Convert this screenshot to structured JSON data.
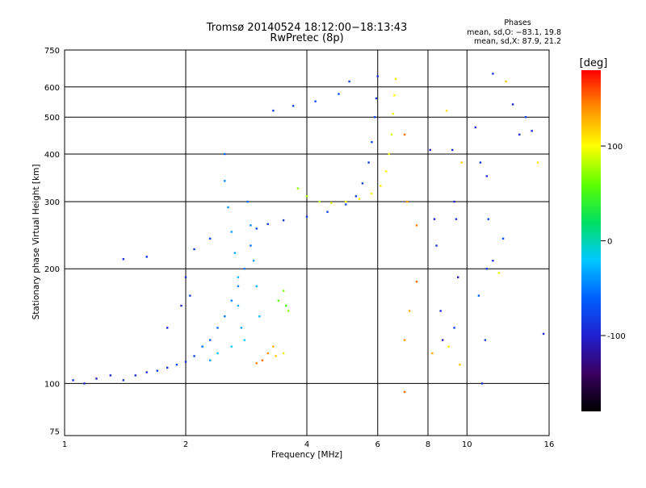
{
  "chart_data": {
    "type": "scatter",
    "title": "Tromsø 20140524 18:12:00−18:13:43",
    "subtitle": "RwPretec (8p)",
    "xlabel": "Frequency [MHz]",
    "ylabel": "Stationary phase Virtual Height [km]",
    "x_scale": "log",
    "y_scale": "log",
    "xlim": [
      1,
      16
    ],
    "ylim": [
      73,
      750
    ],
    "x_ticks": [
      1,
      2,
      4,
      6,
      8,
      10,
      16
    ],
    "y_ticks": [
      75,
      100,
      200,
      300,
      400,
      500,
      600,
      750
    ],
    "grid": true,
    "phases_note": {
      "heading": "Phases",
      "line1": "mean, sd,O: −83.1, 19.8",
      "line2": "mean, sd,X:  87.9, 21.2"
    },
    "colorbar": {
      "label": "[deg]",
      "range": [
        -180,
        180
      ],
      "ticks": [
        -100,
        0,
        100
      ],
      "colors": [
        "#000000",
        "#3a0060",
        "#2020d0",
        "#0060ff",
        "#00c8ff",
        "#00e060",
        "#60ff00",
        "#ffff00",
        "#ff9000",
        "#ff0000"
      ]
    },
    "series": [
      {
        "points": [
          [
            1.05,
            102,
            -90
          ],
          [
            1.12,
            100,
            -95
          ],
          [
            1.2,
            103,
            -100
          ],
          [
            1.3,
            105,
            -95
          ],
          [
            1.4,
            102,
            -90
          ],
          [
            1.5,
            105,
            -100
          ],
          [
            1.6,
            107,
            -95
          ],
          [
            1.7,
            108,
            -85
          ],
          [
            1.8,
            110,
            -90
          ],
          [
            1.9,
            112,
            -80
          ],
          [
            2.0,
            114,
            -85
          ],
          [
            2.1,
            118,
            -75
          ],
          [
            2.2,
            125,
            -70
          ],
          [
            2.3,
            130,
            -60
          ],
          [
            2.4,
            140,
            -55
          ],
          [
            2.5,
            150,
            -50
          ],
          [
            2.6,
            165,
            -45
          ],
          [
            2.7,
            180,
            -45
          ],
          [
            2.8,
            200,
            -50
          ],
          [
            2.9,
            230,
            -55
          ],
          [
            3.0,
            255,
            -70
          ],
          [
            3.2,
            262,
            -80
          ],
          [
            3.5,
            268,
            -85
          ],
          [
            4.0,
            274,
            -85
          ],
          [
            4.5,
            282,
            -80
          ],
          [
            5.0,
            295,
            -80
          ],
          [
            5.3,
            310,
            -85
          ],
          [
            5.5,
            335,
            -85
          ],
          [
            5.7,
            380,
            -85
          ],
          [
            5.8,
            430,
            -80
          ],
          [
            5.9,
            500,
            -80
          ],
          [
            5.95,
            560,
            -85
          ],
          [
            6.0,
            640,
            -90
          ]
        ]
      },
      {
        "points": [
          [
            3.3,
            520,
            -85
          ],
          [
            3.7,
            535,
            -80
          ],
          [
            4.2,
            550,
            -75
          ],
          [
            4.8,
            575,
            -70
          ],
          [
            5.1,
            620,
            -80
          ]
        ]
      },
      {
        "points": [
          [
            2.5,
            400,
            -60
          ],
          [
            2.5,
            340,
            -45
          ],
          [
            2.55,
            290,
            -40
          ],
          [
            2.6,
            250,
            -35
          ],
          [
            2.65,
            220,
            -30
          ],
          [
            2.7,
            190,
            -25
          ],
          [
            2.7,
            160,
            -30
          ],
          [
            2.75,
            140,
            -35
          ],
          [
            2.8,
            130,
            -20
          ],
          [
            2.85,
            300,
            -55
          ],
          [
            2.9,
            260,
            -45
          ],
          [
            2.95,
            210,
            -40
          ],
          [
            3.0,
            180,
            -30
          ],
          [
            3.05,
            150,
            -25
          ],
          [
            2.6,
            125,
            -20
          ],
          [
            2.4,
            120,
            -25
          ],
          [
            2.3,
            115,
            -35
          ],
          [
            2.2,
            125,
            -45
          ]
        ]
      },
      {
        "points": [
          [
            1.8,
            140,
            -90
          ],
          [
            1.95,
            160,
            -95
          ],
          [
            2.0,
            190,
            -95
          ],
          [
            2.05,
            170,
            -85
          ],
          [
            1.6,
            215,
            -90
          ],
          [
            1.4,
            212,
            -90
          ],
          [
            2.1,
            225,
            -85
          ],
          [
            2.3,
            240,
            -80
          ]
        ]
      },
      {
        "points": [
          [
            3.8,
            325,
            70
          ],
          [
            4.0,
            310,
            80
          ],
          [
            4.3,
            300,
            85
          ],
          [
            4.6,
            298,
            90
          ],
          [
            5.0,
            300,
            95
          ],
          [
            5.4,
            305,
            100
          ],
          [
            5.8,
            315,
            105
          ],
          [
            6.1,
            330,
            110
          ],
          [
            6.3,
            360,
            100
          ],
          [
            6.4,
            400,
            95
          ],
          [
            6.5,
            450,
            90
          ],
          [
            6.55,
            510,
            95
          ],
          [
            6.6,
            570,
            100
          ],
          [
            6.65,
            630,
            110
          ]
        ]
      },
      {
        "points": [
          [
            3.4,
            165,
            60
          ],
          [
            3.5,
            175,
            65
          ],
          [
            3.55,
            160,
            55
          ],
          [
            3.6,
            155,
            70
          ],
          [
            3.3,
            125,
            130
          ],
          [
            3.2,
            120,
            140
          ],
          [
            3.1,
            115,
            150
          ],
          [
            3.0,
            113,
            145
          ],
          [
            3.35,
            118,
            120
          ],
          [
            3.5,
            120,
            110
          ]
        ]
      },
      {
        "points": [
          [
            7.0,
            450,
            150
          ],
          [
            7.1,
            300,
            140
          ],
          [
            7.5,
            260,
            145
          ],
          [
            7.5,
            185,
            150
          ],
          [
            7.2,
            155,
            130
          ],
          [
            7.0,
            130,
            140
          ],
          [
            7.0,
            95,
            150
          ],
          [
            8.1,
            410,
            -100
          ],
          [
            8.3,
            270,
            -105
          ],
          [
            8.4,
            230,
            -90
          ],
          [
            8.6,
            155,
            -95
          ],
          [
            8.7,
            130,
            -110
          ],
          [
            8.2,
            120,
            130
          ],
          [
            9.2,
            410,
            -95
          ],
          [
            9.3,
            300,
            -100
          ],
          [
            9.4,
            270,
            -90
          ],
          [
            9.5,
            190,
            -110
          ],
          [
            9.3,
            140,
            -80
          ],
          [
            9.0,
            125,
            110
          ],
          [
            9.6,
            112,
            120
          ],
          [
            10.5,
            470,
            -100
          ],
          [
            10.8,
            380,
            -90
          ],
          [
            11.2,
            350,
            -95
          ],
          [
            11.3,
            270,
            -80
          ],
          [
            11.2,
            200,
            -85
          ],
          [
            11.6,
            210,
            -90
          ],
          [
            12.0,
            195,
            95
          ],
          [
            10.7,
            170,
            -60
          ],
          [
            11.1,
            130,
            -80
          ],
          [
            10.9,
            100,
            -90
          ],
          [
            11.6,
            650,
            -85
          ],
          [
            12.5,
            620,
            120
          ],
          [
            13.0,
            540,
            -100
          ],
          [
            14.0,
            500,
            -80
          ],
          [
            14.5,
            460,
            -95
          ],
          [
            13.5,
            450,
            -95
          ],
          [
            15.0,
            380,
            110
          ],
          [
            15.5,
            135,
            -100
          ],
          [
            12.3,
            240,
            -70
          ],
          [
            8.9,
            520,
            110
          ],
          [
            9.7,
            380,
            120
          ]
        ]
      }
    ]
  }
}
